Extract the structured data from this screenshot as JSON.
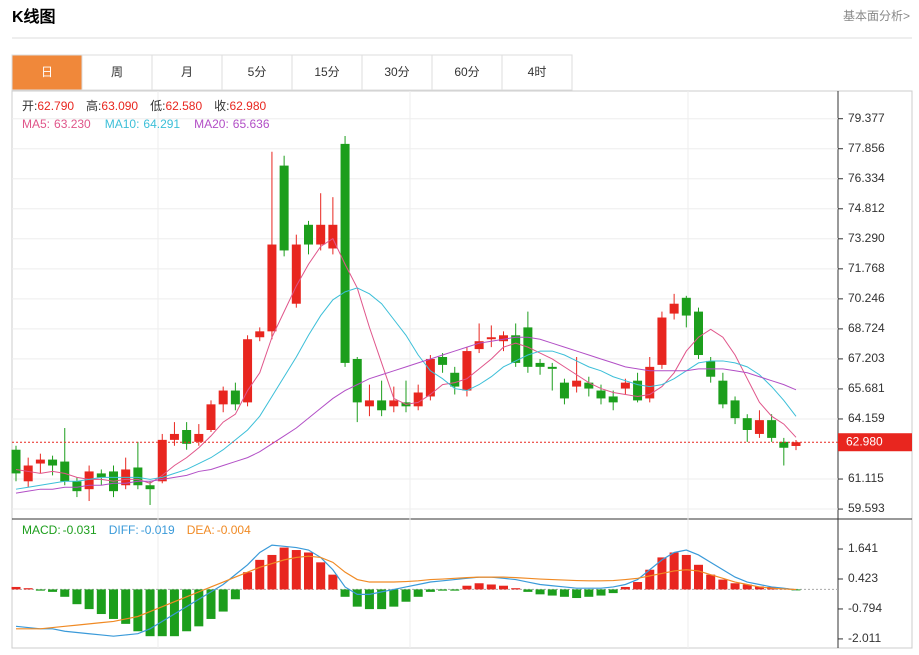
{
  "header": {
    "title": "K线图",
    "link": "基本面分析>"
  },
  "tabs": [
    "日",
    "周",
    "月",
    "5分",
    "15分",
    "30分",
    "60分",
    "4时"
  ],
  "active_tab": 0,
  "chart_data": {
    "type": "candlestick",
    "ohlc_labels": [
      {
        "label": "开:",
        "value": "62.790"
      },
      {
        "label": "高:",
        "value": "63.090"
      },
      {
        "label": "低:",
        "value": "62.580"
      },
      {
        "label": "收:",
        "value": "62.980"
      }
    ],
    "up_color": "#e8261f",
    "down_color": "#1c9e1c",
    "open": [
      62.6,
      61.0,
      61.9,
      62.1,
      62.0,
      61.0,
      60.6,
      61.4,
      61.5,
      60.8,
      61.7,
      60.8,
      61.0,
      63.1,
      63.6,
      63.0,
      63.6,
      64.9,
      65.6,
      65.0,
      68.3,
      68.6,
      77.0,
      70.0,
      74.0,
      73.0,
      72.8,
      78.1,
      67.2,
      64.8,
      65.1,
      64.8,
      65.0,
      64.8,
      65.3,
      67.3,
      66.5,
      65.6,
      67.7,
      68.2,
      68.1,
      68.4,
      68.8,
      67.0,
      66.8,
      66.0,
      65.8,
      66.0,
      65.6,
      65.3,
      65.7,
      66.1,
      65.2,
      66.9,
      69.5,
      70.3,
      69.6,
      67.1,
      66.1,
      65.1,
      64.2,
      63.4,
      64.1,
      63.0,
      62.79
    ],
    "high": [
      62.8,
      62.2,
      62.4,
      62.3,
      63.7,
      61.2,
      61.8,
      61.6,
      61.8,
      62.2,
      63.0,
      61.0,
      63.4,
      64.0,
      64.0,
      63.9,
      65.1,
      65.8,
      66.0,
      68.4,
      68.8,
      77.7,
      77.5,
      73.5,
      74.2,
      75.6,
      75.4,
      78.5,
      67.3,
      65.9,
      66.1,
      65.8,
      66.1,
      65.9,
      67.4,
      67.5,
      66.8,
      67.8,
      69.0,
      68.9,
      68.6,
      69.0,
      69.6,
      67.2,
      67.0,
      66.2,
      67.3,
      66.3,
      65.9,
      65.6,
      66.2,
      66.5,
      67.3,
      69.6,
      70.5,
      70.4,
      69.8,
      67.3,
      66.5,
      65.3,
      64.4,
      64.6,
      64.4,
      63.2,
      63.09
    ],
    "low": [
      61.0,
      60.7,
      61.4,
      61.3,
      60.8,
      60.2,
      60.0,
      60.8,
      60.2,
      60.6,
      60.6,
      59.8,
      60.9,
      62.8,
      62.6,
      62.8,
      63.5,
      64.5,
      64.6,
      64.8,
      68.1,
      68.2,
      72.4,
      69.8,
      72.5,
      72.7,
      72.5,
      66.8,
      64.0,
      64.3,
      64.3,
      64.5,
      64.5,
      64.6,
      65.1,
      66.5,
      65.4,
      65.3,
      67.5,
      67.8,
      67.6,
      66.8,
      66.5,
      66.4,
      65.6,
      64.9,
      65.5,
      65.3,
      64.9,
      64.6,
      65.4,
      65.0,
      65.0,
      66.7,
      69.2,
      68.8,
      67.2,
      66.0,
      64.7,
      63.9,
      63.0,
      63.2,
      63.0,
      61.8,
      62.58
    ],
    "close": [
      61.4,
      61.8,
      62.1,
      61.8,
      61.0,
      60.5,
      61.5,
      61.2,
      60.5,
      61.6,
      60.8,
      60.6,
      63.1,
      63.4,
      62.9,
      63.4,
      64.9,
      65.6,
      64.9,
      68.2,
      68.6,
      73.0,
      72.7,
      73.0,
      73.0,
      74.0,
      74.0,
      67.0,
      65.0,
      65.1,
      64.6,
      65.1,
      64.8,
      65.5,
      67.2,
      66.9,
      65.8,
      67.6,
      68.1,
      68.3,
      68.4,
      67.0,
      66.8,
      66.8,
      66.7,
      65.2,
      66.1,
      65.7,
      65.2,
      65.0,
      66.0,
      65.1,
      66.8,
      69.3,
      70.0,
      69.4,
      67.4,
      66.3,
      64.9,
      64.2,
      63.6,
      64.1,
      63.2,
      62.7,
      62.98
    ],
    "series": [
      {
        "name": "MA5",
        "label": "MA5:",
        "current": "63.230",
        "color": "#e0558a",
        "values": [
          61.6,
          61.5,
          61.4,
          61.5,
          61.4,
          61.2,
          61.1,
          61.1,
          61.0,
          61.1,
          61.1,
          60.9,
          61.3,
          61.8,
          62.2,
          62.7,
          63.3,
          64.0,
          64.4,
          65.6,
          66.5,
          68.3,
          69.6,
          70.9,
          72.0,
          72.9,
          73.3,
          72.0,
          70.8,
          68.8,
          67.0,
          65.2,
          64.9,
          65.0,
          65.4,
          65.9,
          66.0,
          66.2,
          66.7,
          67.2,
          67.8,
          68.0,
          67.8,
          67.5,
          67.2,
          66.8,
          66.4,
          66.0,
          65.7,
          65.5,
          65.4,
          65.3,
          65.4,
          65.8,
          66.5,
          67.6,
          68.3,
          68.7,
          68.3,
          67.4,
          66.2,
          65.0,
          64.3,
          63.9,
          63.23
        ]
      },
      {
        "name": "MA10",
        "label": "MA10:",
        "current": "64.291",
        "color": "#3cbfd8",
        "values": [
          60.6,
          60.7,
          60.8,
          60.9,
          61.0,
          61.0,
          61.1,
          61.2,
          61.2,
          61.2,
          61.2,
          61.1,
          61.2,
          61.4,
          61.6,
          61.9,
          62.2,
          62.6,
          63.1,
          63.6,
          64.3,
          65.3,
          66.3,
          67.3,
          68.4,
          69.4,
          70.2,
          70.6,
          70.8,
          70.5,
          70.0,
          69.2,
          68.4,
          67.4,
          66.6,
          66.2,
          65.7,
          65.6,
          65.9,
          66.3,
          66.8,
          67.1,
          67.4,
          67.6,
          67.6,
          67.4,
          67.1,
          66.8,
          66.6,
          66.3,
          66.1,
          65.9,
          65.8,
          65.9,
          66.2,
          66.6,
          67.0,
          67.1,
          67.1,
          67.0,
          66.8,
          66.4,
          65.8,
          65.1,
          64.291
        ]
      },
      {
        "name": "MA20",
        "label": "MA20:",
        "current": "65.636",
        "color": "#b24fc6",
        "values": [
          60.4,
          60.5,
          60.6,
          60.6,
          60.7,
          60.7,
          60.8,
          60.8,
          60.9,
          60.9,
          61.0,
          61.0,
          61.1,
          61.2,
          61.3,
          61.5,
          61.6,
          61.8,
          62.0,
          62.2,
          62.5,
          62.9,
          63.3,
          63.7,
          64.2,
          64.7,
          65.2,
          65.6,
          65.9,
          66.2,
          66.4,
          66.6,
          66.8,
          67.0,
          67.2,
          67.4,
          67.6,
          67.8,
          68.0,
          68.1,
          68.2,
          68.3,
          68.3,
          68.2,
          68.0,
          67.8,
          67.6,
          67.4,
          67.2,
          67.0,
          66.8,
          66.7,
          66.6,
          66.6,
          66.6,
          66.6,
          66.7,
          66.7,
          66.7,
          66.6,
          66.5,
          66.3,
          66.1,
          65.9,
          65.636
        ]
      }
    ],
    "last_price": {
      "value": 62.98,
      "label": "62.980"
    },
    "ylim": [
      59.14,
      80.73
    ],
    "yticks": [
      59.593,
      61.115,
      64.159,
      65.681,
      67.203,
      68.724,
      70.246,
      71.768,
      {
        "value": 73.29,
        "label": "73.290"
      },
      74.812,
      76.334,
      77.856,
      79.377
    ],
    "grid": true
  },
  "macd_data": {
    "type": "macd",
    "labels": [
      {
        "label": "MACD:",
        "value": "-0.031",
        "color": "#1c9e1c"
      },
      {
        "label": "DIFF:",
        "value": "-0.019",
        "color": "#3a9ad9"
      },
      {
        "label": "DEA:",
        "value": "-0.004",
        "color": "#f08a24"
      }
    ],
    "histogram": [
      0.1,
      0.05,
      -0.05,
      -0.1,
      -0.3,
      -0.6,
      -0.8,
      -1.0,
      -1.2,
      -1.4,
      -1.7,
      -1.9,
      -1.9,
      -1.9,
      -1.7,
      -1.5,
      -1.2,
      -0.9,
      -0.4,
      0.7,
      1.2,
      1.4,
      1.7,
      1.6,
      1.5,
      1.1,
      0.6,
      -0.3,
      -0.7,
      -0.8,
      -0.8,
      -0.7,
      -0.5,
      -0.3,
      -0.1,
      -0.05,
      -0.05,
      0.15,
      0.25,
      0.2,
      0.15,
      0.05,
      -0.1,
      -0.2,
      -0.25,
      -0.3,
      -0.35,
      -0.3,
      -0.25,
      -0.15,
      0.1,
      0.3,
      0.8,
      1.3,
      1.5,
      1.4,
      1.0,
      0.6,
      0.4,
      0.25,
      0.2,
      0.12,
      0.1,
      0.05,
      -0.031
    ],
    "series": [
      {
        "name": "DIFF",
        "color": "#3a9ad9",
        "values": [
          -1.5,
          -1.55,
          -1.6,
          -1.6,
          -1.7,
          -1.75,
          -1.8,
          -1.85,
          -1.9,
          -1.85,
          -1.8,
          -1.6,
          -1.3,
          -1.0,
          -0.7,
          -0.4,
          -0.1,
          0.2,
          0.6,
          1.0,
          1.5,
          1.8,
          1.75,
          1.7,
          1.6,
          1.3,
          0.8,
          0.1,
          -0.2,
          -0.2,
          -0.1,
          0.0,
          0.1,
          0.2,
          0.3,
          0.35,
          0.4,
          0.45,
          0.5,
          0.5,
          0.45,
          0.4,
          0.3,
          0.2,
          0.15,
          0.1,
          0.05,
          0.05,
          0.05,
          0.1,
          0.2,
          0.4,
          0.8,
          1.2,
          1.5,
          1.6,
          1.4,
          1.1,
          0.8,
          0.5,
          0.3,
          0.2,
          0.1,
          0.05,
          -0.019
        ]
      },
      {
        "name": "DEA",
        "color": "#f08a24",
        "values": [
          -1.6,
          -1.6,
          -1.6,
          -1.55,
          -1.5,
          -1.45,
          -1.4,
          -1.35,
          -1.3,
          -1.2,
          -1.1,
          -0.9,
          -0.7,
          -0.5,
          -0.3,
          -0.1,
          0.1,
          0.3,
          0.5,
          0.7,
          0.9,
          1.05,
          1.2,
          1.3,
          1.35,
          1.3,
          1.1,
          0.7,
          0.4,
          0.3,
          0.3,
          0.3,
          0.32,
          0.35,
          0.4,
          0.42,
          0.45,
          0.48,
          0.5,
          0.5,
          0.5,
          0.48,
          0.45,
          0.42,
          0.4,
          0.38,
          0.36,
          0.35,
          0.35,
          0.36,
          0.4,
          0.45,
          0.55,
          0.65,
          0.75,
          0.8,
          0.75,
          0.6,
          0.45,
          0.3,
          0.2,
          0.1,
          0.05,
          0.02,
          -0.004
        ]
      }
    ],
    "ylim": [
      -2.38,
      2.82
    ],
    "yticks": [
      -2.011,
      -0.794,
      0.423,
      1.641
    ]
  }
}
